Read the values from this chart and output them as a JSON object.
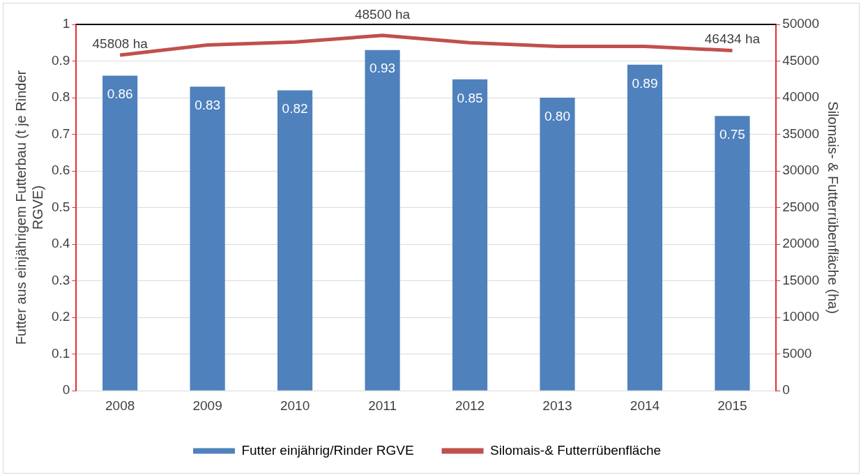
{
  "chart_data": {
    "type": "bar",
    "categories": [
      "2008",
      "2009",
      "2010",
      "2011",
      "2012",
      "2013",
      "2014",
      "2015"
    ],
    "ylabel": "Futter aus einjährigem Futterbau (t je Rinder RGVE)",
    "y2label": "Silomais- & Futterrübenfläche (ha)",
    "ylim": [
      0,
      1
    ],
    "yticks": [
      0,
      0.1,
      0.2,
      0.3,
      0.4,
      0.5,
      0.6,
      0.7,
      0.8,
      0.9,
      1
    ],
    "y2lim": [
      0,
      50000
    ],
    "y2ticks": [
      0,
      5000,
      10000,
      15000,
      20000,
      25000,
      30000,
      35000,
      40000,
      45000,
      50000
    ],
    "grid": "y",
    "legend": "bottom",
    "series": [
      {
        "name": "Futter einjährig/Rinder RGVE",
        "color": "#4f81bd",
        "values": [
          0.86,
          0.83,
          0.82,
          0.93,
          0.85,
          0.8,
          0.89,
          0.75
        ],
        "value_labels": [
          "0.86",
          "0.83",
          "0.82",
          "0.93",
          "0.85",
          "0.80",
          "0.89",
          "0.75"
        ]
      },
      {
        "name": "Silomais-& Futterrübenfläche",
        "type": "line",
        "axis": "y2",
        "color": "#c0504d",
        "values": [
          45808,
          47200,
          47600,
          48500,
          47500,
          47000,
          47000,
          46434
        ],
        "value_labels": [
          "45808 ha",
          null,
          null,
          "48500 ha",
          null,
          null,
          null,
          "46434 ha"
        ]
      }
    ]
  }
}
